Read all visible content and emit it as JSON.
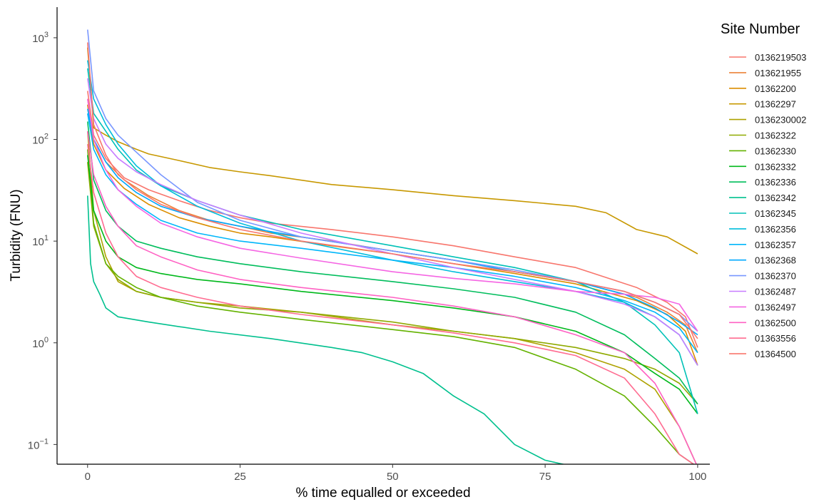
{
  "chart_data": {
    "type": "line",
    "xlabel": "% time equalled or exceeded",
    "ylabel": "Turbidity (FNU)",
    "legend_title": "Site Number",
    "legend_position": "right",
    "grid": false,
    "xscale": "linear",
    "yscale": "log",
    "xlim": [
      -5,
      102
    ],
    "ylim": [
      0.064,
      2000
    ],
    "xticks": [
      0,
      25,
      50,
      75,
      100
    ],
    "xtick_labels": [
      "0",
      "25",
      "50",
      "75",
      "100"
    ],
    "yticks": [
      0.1,
      1,
      10,
      100,
      1000
    ],
    "ytick_labels": [
      {
        "base": "10",
        "exp": "−1"
      },
      {
        "base": "10",
        "exp": "0"
      },
      {
        "base": "10",
        "exp": "1"
      },
      {
        "base": "10",
        "exp": "2"
      },
      {
        "base": "10",
        "exp": "3"
      }
    ],
    "series": [
      {
        "name": "0136219503",
        "color": "#F8766D",
        "x": [
          0,
          1,
          3,
          6,
          10,
          15,
          20,
          25,
          30,
          40,
          50,
          60,
          70,
          80,
          90,
          95,
          98,
          100
        ],
        "y": [
          300,
          110,
          65,
          42,
          32,
          25,
          20,
          17,
          15,
          13,
          11,
          9,
          7,
          5.5,
          3.5,
          2.5,
          1.8,
          0.9
        ]
      },
      {
        "name": "013621955",
        "color": "#EC8239",
        "x": [
          0,
          1,
          3,
          6,
          10,
          15,
          20,
          25,
          30,
          40,
          50,
          60,
          70,
          80,
          90,
          95,
          98,
          100
        ],
        "y": [
          250,
          100,
          60,
          40,
          28,
          20,
          16,
          14,
          12,
          10,
          8,
          6.5,
          5,
          4,
          2.8,
          2,
          1.5,
          0.8
        ]
      },
      {
        "name": "01362200",
        "color": "#DB8E00",
        "x": [
          0,
          1,
          3,
          6,
          10,
          15,
          20,
          25,
          30,
          40,
          50,
          60,
          70,
          80,
          90,
          95,
          98,
          100
        ],
        "y": [
          220,
          90,
          50,
          33,
          23,
          17,
          14,
          12,
          11,
          9,
          7.5,
          6,
          4.8,
          3.8,
          2.6,
          1.9,
          1.3,
          0.6
        ]
      },
      {
        "name": "01362297",
        "color": "#C79800",
        "x": [
          0,
          1,
          3,
          5,
          8,
          10,
          15,
          20,
          25,
          30,
          40,
          50,
          60,
          70,
          80,
          85,
          90,
          95,
          100
        ],
        "y": [
          800,
          130,
          110,
          95,
          80,
          72,
          62,
          53,
          48,
          44,
          36,
          32,
          28,
          25,
          22,
          19,
          13,
          11,
          7.5
        ]
      },
      {
        "name": "0136230002",
        "color": "#AEA200",
        "x": [
          0,
          1,
          3,
          5,
          8,
          12,
          18,
          25,
          35,
          50,
          60,
          70,
          80,
          88,
          93,
          97,
          100
        ],
        "y": [
          120,
          20,
          7,
          4,
          3.2,
          2.8,
          2.5,
          2.3,
          2,
          1.5,
          1.3,
          1.1,
          0.8,
          0.55,
          0.35,
          0.15,
          0.06
        ]
      },
      {
        "name": "01362322",
        "color": "#8FAA00",
        "x": [
          0,
          1,
          3,
          5,
          8,
          12,
          18,
          25,
          35,
          50,
          60,
          70,
          80,
          88,
          93,
          97,
          100
        ],
        "y": [
          60,
          14,
          6,
          4.2,
          3.2,
          2.8,
          2.5,
          2.2,
          2,
          1.6,
          1.3,
          1.1,
          0.9,
          0.7,
          0.55,
          0.4,
          0.25
        ]
      },
      {
        "name": "01362330",
        "color": "#64B200",
        "x": [
          0,
          1,
          3,
          5,
          8,
          12,
          18,
          25,
          35,
          50,
          60,
          70,
          80,
          88,
          93,
          97,
          100
        ],
        "y": [
          80,
          15,
          6,
          4.5,
          3.5,
          2.8,
          2.3,
          2,
          1.7,
          1.35,
          1.15,
          0.9,
          0.55,
          0.3,
          0.15,
          0.08,
          0.06
        ]
      },
      {
        "name": "01362332",
        "color": "#00B81B",
        "x": [
          0,
          1,
          3,
          5,
          8,
          12,
          18,
          25,
          35,
          50,
          60,
          70,
          80,
          88,
          93,
          97,
          100
        ],
        "y": [
          70,
          20,
          10,
          7,
          5.5,
          4.8,
          4.2,
          3.8,
          3.2,
          2.6,
          2.2,
          1.8,
          1.3,
          0.8,
          0.5,
          0.35,
          0.2
        ]
      },
      {
        "name": "01362336",
        "color": "#00BD5C",
        "x": [
          0,
          1,
          3,
          5,
          8,
          12,
          18,
          25,
          35,
          50,
          60,
          70,
          80,
          88,
          93,
          97,
          100
        ],
        "y": [
          150,
          40,
          20,
          14,
          10,
          8.5,
          7,
          6,
          5,
          4,
          3.4,
          2.8,
          2,
          1.2,
          0.7,
          0.45,
          0.25
        ]
      },
      {
        "name": "01362342",
        "color": "#00C08E",
        "x": [
          0,
          0.5,
          1,
          2,
          3,
          5,
          10,
          20,
          30,
          40,
          45,
          50,
          55,
          60,
          65,
          70,
          75,
          80,
          82
        ],
        "y": [
          28,
          6,
          4,
          3,
          2.2,
          1.8,
          1.6,
          1.3,
          1.1,
          0.9,
          0.8,
          0.65,
          0.5,
          0.3,
          0.2,
          0.1,
          0.07,
          0.06,
          0.055
        ]
      },
      {
        "name": "01362345",
        "color": "#00C1B7",
        "x": [
          0,
          1,
          3,
          5,
          8,
          12,
          18,
          25,
          35,
          50,
          60,
          70,
          80,
          88,
          93,
          97,
          100
        ],
        "y": [
          500,
          180,
          120,
          80,
          50,
          35,
          25,
          18,
          13,
          9,
          7,
          5.5,
          4,
          2.5,
          1.5,
          0.8,
          0.2
        ]
      },
      {
        "name": "01362356",
        "color": "#00BDDC",
        "x": [
          0,
          1,
          3,
          5,
          8,
          12,
          18,
          25,
          35,
          50,
          60,
          70,
          80,
          88,
          93,
          97,
          100
        ],
        "y": [
          600,
          250,
          140,
          90,
          55,
          35,
          22,
          15,
          10,
          6.5,
          5,
          4,
          3.2,
          2.5,
          1.8,
          1.2,
          0.6
        ]
      },
      {
        "name": "01362357",
        "color": "#00B6FA",
        "x": [
          0,
          1,
          3,
          5,
          8,
          12,
          18,
          25,
          35,
          50,
          60,
          70,
          80,
          88,
          93,
          97,
          100
        ],
        "y": [
          180,
          80,
          45,
          32,
          23,
          16,
          12,
          10,
          8.5,
          6.5,
          5.5,
          4.5,
          3.5,
          2.6,
          2,
          1.4,
          0.8
        ]
      },
      {
        "name": "01362368",
        "color": "#00A8FF",
        "x": [
          0,
          1,
          3,
          5,
          8,
          12,
          18,
          25,
          35,
          50,
          60,
          70,
          80,
          88,
          93,
          97,
          100
        ],
        "y": [
          200,
          100,
          60,
          42,
          30,
          22,
          17,
          14,
          11,
          8,
          6.5,
          5,
          4,
          3,
          2.2,
          1.6,
          1.2
        ]
      },
      {
        "name": "01362370",
        "color": "#7997FF",
        "x": [
          0,
          1,
          3,
          5,
          8,
          12,
          18,
          25,
          35,
          50,
          60,
          70,
          80,
          88,
          93,
          97,
          100
        ],
        "y": [
          1200,
          300,
          160,
          110,
          75,
          45,
          24,
          16,
          11,
          8,
          6.5,
          5.2,
          4,
          3.2,
          2.5,
          1.9,
          1.3
        ]
      },
      {
        "name": "01362487",
        "color": "#C77CFF",
        "x": [
          0,
          1,
          3,
          5,
          8,
          12,
          18,
          25,
          35,
          50,
          60,
          70,
          80,
          88,
          93,
          97,
          100
        ],
        "y": [
          400,
          160,
          90,
          65,
          48,
          36,
          25,
          18,
          12,
          7.5,
          5.5,
          4.2,
          3.2,
          2.4,
          1.8,
          1.2,
          0.6
        ]
      },
      {
        "name": "01362497",
        "color": "#F565E3",
        "x": [
          0,
          1,
          3,
          5,
          8,
          12,
          18,
          25,
          35,
          50,
          60,
          70,
          80,
          88,
          93,
          97,
          100
        ],
        "y": [
          250,
          100,
          50,
          32,
          22,
          15,
          11,
          8.5,
          6.8,
          5,
          4.3,
          3.8,
          3.2,
          3,
          2.8,
          2.4,
          1.3
        ]
      },
      {
        "name": "01362500",
        "color": "#FF61C3",
        "x": [
          0,
          1,
          3,
          5,
          8,
          12,
          18,
          25,
          35,
          50,
          60,
          70,
          80,
          88,
          93,
          97,
          100
        ],
        "y": [
          120,
          45,
          22,
          14,
          9,
          7,
          5.2,
          4.2,
          3.5,
          2.8,
          2.3,
          1.8,
          1.2,
          0.8,
          0.4,
          0.15,
          0.06
        ]
      },
      {
        "name": "01363556",
        "color": "#FF6C91",
        "x": [
          0,
          1,
          3,
          5,
          8,
          12,
          18,
          25,
          35,
          50,
          60,
          70,
          80,
          88,
          93,
          97,
          100
        ],
        "y": [
          90,
          30,
          12,
          7,
          4.5,
          3.5,
          2.8,
          2.3,
          1.9,
          1.5,
          1.25,
          1,
          0.75,
          0.45,
          0.2,
          0.08,
          0.06
        ]
      },
      {
        "name": "01364500",
        "color": "#F8766D",
        "x": [
          0,
          1,
          3,
          5,
          8,
          12,
          18,
          25,
          35,
          50,
          60,
          70,
          80,
          88,
          93,
          97,
          100
        ],
        "y": [
          900,
          140,
          70,
          45,
          32,
          23,
          17,
          13,
          10,
          7.5,
          6,
          5,
          4,
          3.2,
          2.5,
          1.9,
          1.1
        ]
      }
    ]
  }
}
